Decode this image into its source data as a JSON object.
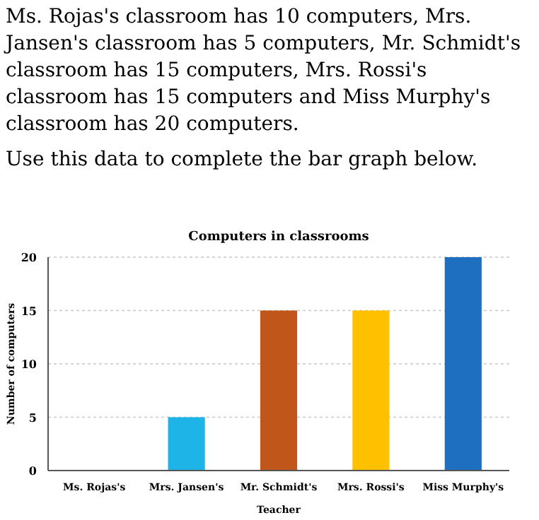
{
  "chart_data": {
    "type": "bar",
    "title": "Computers in classrooms",
    "xlabel": "Teacher",
    "ylabel": "Number of computers",
    "annotations": [
      "Ms. Rojas's classroom has 10 computers, Mrs. Jansen's classroom has 5 computers, Mr. Schmidt's classroom has 15 computers, Mrs. Rossi's classroom has 15 computers and Miss Murphy's classroom has 20 computers.",
      "Use this data to complete the bar graph below."
    ],
    "categories": [
      "Ms. Rojas's",
      "Mrs. Jansen's",
      "Mr. Schmidt's",
      "Mrs. Rossi's",
      "Miss Murphy's"
    ],
    "values": [
      null,
      5,
      15,
      15,
      20
    ],
    "colors": [
      null,
      "#1fb4e8",
      "#c0561a",
      "#ffc000",
      "#1f6fc0"
    ],
    "ylim": [
      0,
      20
    ],
    "yticks": [
      0,
      5,
      10,
      15,
      20
    ],
    "grid": "y"
  }
}
